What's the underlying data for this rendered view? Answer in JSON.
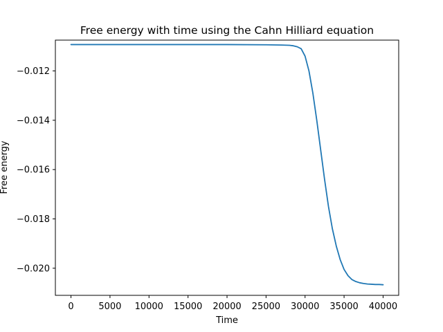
{
  "chart_data": {
    "type": "line",
    "title": "Free energy with time using the Cahn Hilliard equation",
    "xlabel": "Time",
    "ylabel": "Free energy",
    "xlim": [
      -2000,
      42000
    ],
    "ylim": [
      -0.0211,
      -0.01075
    ],
    "xticks": [
      0,
      5000,
      10000,
      15000,
      20000,
      25000,
      30000,
      35000,
      40000
    ],
    "xtick_labels": [
      "0",
      "5000",
      "10000",
      "15000",
      "20000",
      "25000",
      "30000",
      "35000",
      "40000"
    ],
    "yticks": [
      -0.012,
      -0.014,
      -0.016,
      -0.018,
      -0.02
    ],
    "ytick_labels": [
      "−0.012",
      "−0.014",
      "−0.016",
      "−0.018",
      "−0.020"
    ],
    "grid": false,
    "legend": "none",
    "line_color": "#1f77b4",
    "series": [
      {
        "x": [
          0,
          5000,
          10000,
          15000,
          20000,
          25000,
          27000,
          28000,
          28500,
          29000,
          29500,
          30000,
          30500,
          31000,
          31500,
          32000,
          32500,
          33000,
          33500,
          34000,
          34500,
          35000,
          35500,
          36000,
          36500,
          37000,
          37500,
          38000,
          38500,
          39000,
          39500,
          40000
        ],
        "y": [
          -0.01093,
          -0.01093,
          -0.01093,
          -0.01093,
          -0.01093,
          -0.01094,
          -0.01095,
          -0.01096,
          -0.01098,
          -0.01102,
          -0.0111,
          -0.0114,
          -0.012,
          -0.0129,
          -0.014,
          -0.0152,
          -0.0164,
          -0.0175,
          -0.0184,
          -0.0191,
          -0.01965,
          -0.02005,
          -0.0203,
          -0.02046,
          -0.02054,
          -0.02059,
          -0.02062,
          -0.02064,
          -0.02065,
          -0.02066,
          -0.02066,
          -0.02067
        ]
      }
    ]
  }
}
